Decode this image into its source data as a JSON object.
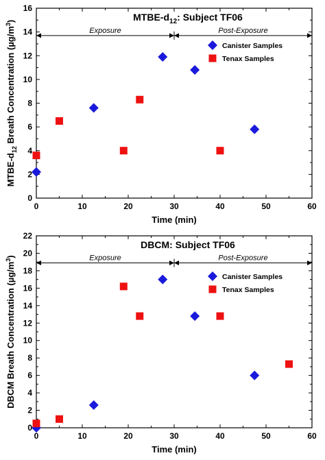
{
  "chart_data": [
    {
      "type": "scatter",
      "title": "MTBE-d12:  Subject TF06",
      "title_main": "MTBE-d",
      "title_sub": "12",
      "title_rest": ":  Subject TF06",
      "xlabel": "Time (min)",
      "ylabel": "MTBE-d12 Breath Concentration (µg/m3)",
      "ylabel_pre": "MTBE-d",
      "ylabel_sub": "12",
      "ylabel_mid": " Breath Concentration (µg/m",
      "ylabel_sup": "3",
      "ylabel_post": ")",
      "xlim": [
        0,
        60
      ],
      "ylim": [
        0,
        16
      ],
      "xticks": [
        "0",
        "10",
        "20",
        "30",
        "40",
        "50",
        "60"
      ],
      "yticks": [
        "0",
        "2",
        "4",
        "6",
        "8",
        "10",
        "12",
        "14",
        "16"
      ],
      "grid": false,
      "legend_position": "top-right",
      "annotations": [
        {
          "text": "Exposure",
          "x_from": 0,
          "x_to": 30,
          "y": 13.7
        },
        {
          "text": "Post-Exposure",
          "x_from": 30,
          "x_to": 60,
          "y": 13.7
        }
      ],
      "series": [
        {
          "name": "Canister Samples",
          "marker": "diamond",
          "color": "#1a1adc",
          "x": [
            0,
            12.5,
            27.5,
            34.5,
            47.5
          ],
          "y": [
            2.2,
            7.6,
            11.9,
            10.8,
            5.8
          ]
        },
        {
          "name": "Tenax Samples",
          "marker": "square",
          "color": "#ee1111",
          "x": [
            0,
            5,
            19,
            22.5,
            40
          ],
          "y": [
            3.6,
            6.5,
            4.0,
            8.3,
            4.0
          ]
        }
      ]
    },
    {
      "type": "scatter",
      "title": "DBCM:  Subject TF06",
      "title_main": "DBCM:  Subject TF06",
      "title_sub": "",
      "title_rest": "",
      "xlabel": "Time (min)",
      "ylabel": "DBCM Breath Concentration (µg/m3)",
      "ylabel_pre": "DBCM Breath Concentration (µg/m",
      "ylabel_sub": "",
      "ylabel_mid": "",
      "ylabel_sup": "3",
      "ylabel_post": ")",
      "xlim": [
        0,
        60
      ],
      "ylim": [
        0,
        22
      ],
      "xticks": [
        "0",
        "10",
        "20",
        "30",
        "40",
        "50",
        "60"
      ],
      "yticks": [
        "0",
        "2",
        "4",
        "6",
        "8",
        "10",
        "12",
        "14",
        "16",
        "18",
        "20",
        "22"
      ],
      "grid": false,
      "legend_position": "center-right",
      "annotations": [
        {
          "text": "Exposure",
          "x_from": 0,
          "x_to": 30,
          "y": 18.9
        },
        {
          "text": "Post-Exposure",
          "x_from": 30,
          "x_to": 60,
          "y": 18.9
        }
      ],
      "series": [
        {
          "name": "Canister Samples",
          "marker": "diamond",
          "color": "#1a1adc",
          "x": [
            0,
            12.5,
            27.5,
            34.5,
            47.5
          ],
          "y": [
            0,
            2.6,
            17.0,
            12.8,
            6.0
          ]
        },
        {
          "name": "Tenax Samples",
          "marker": "square",
          "color": "#ee1111",
          "x": [
            0,
            5,
            19,
            22.5,
            40,
            55
          ],
          "y": [
            0.5,
            1.0,
            16.2,
            12.8,
            12.8,
            7.3
          ]
        }
      ]
    }
  ]
}
